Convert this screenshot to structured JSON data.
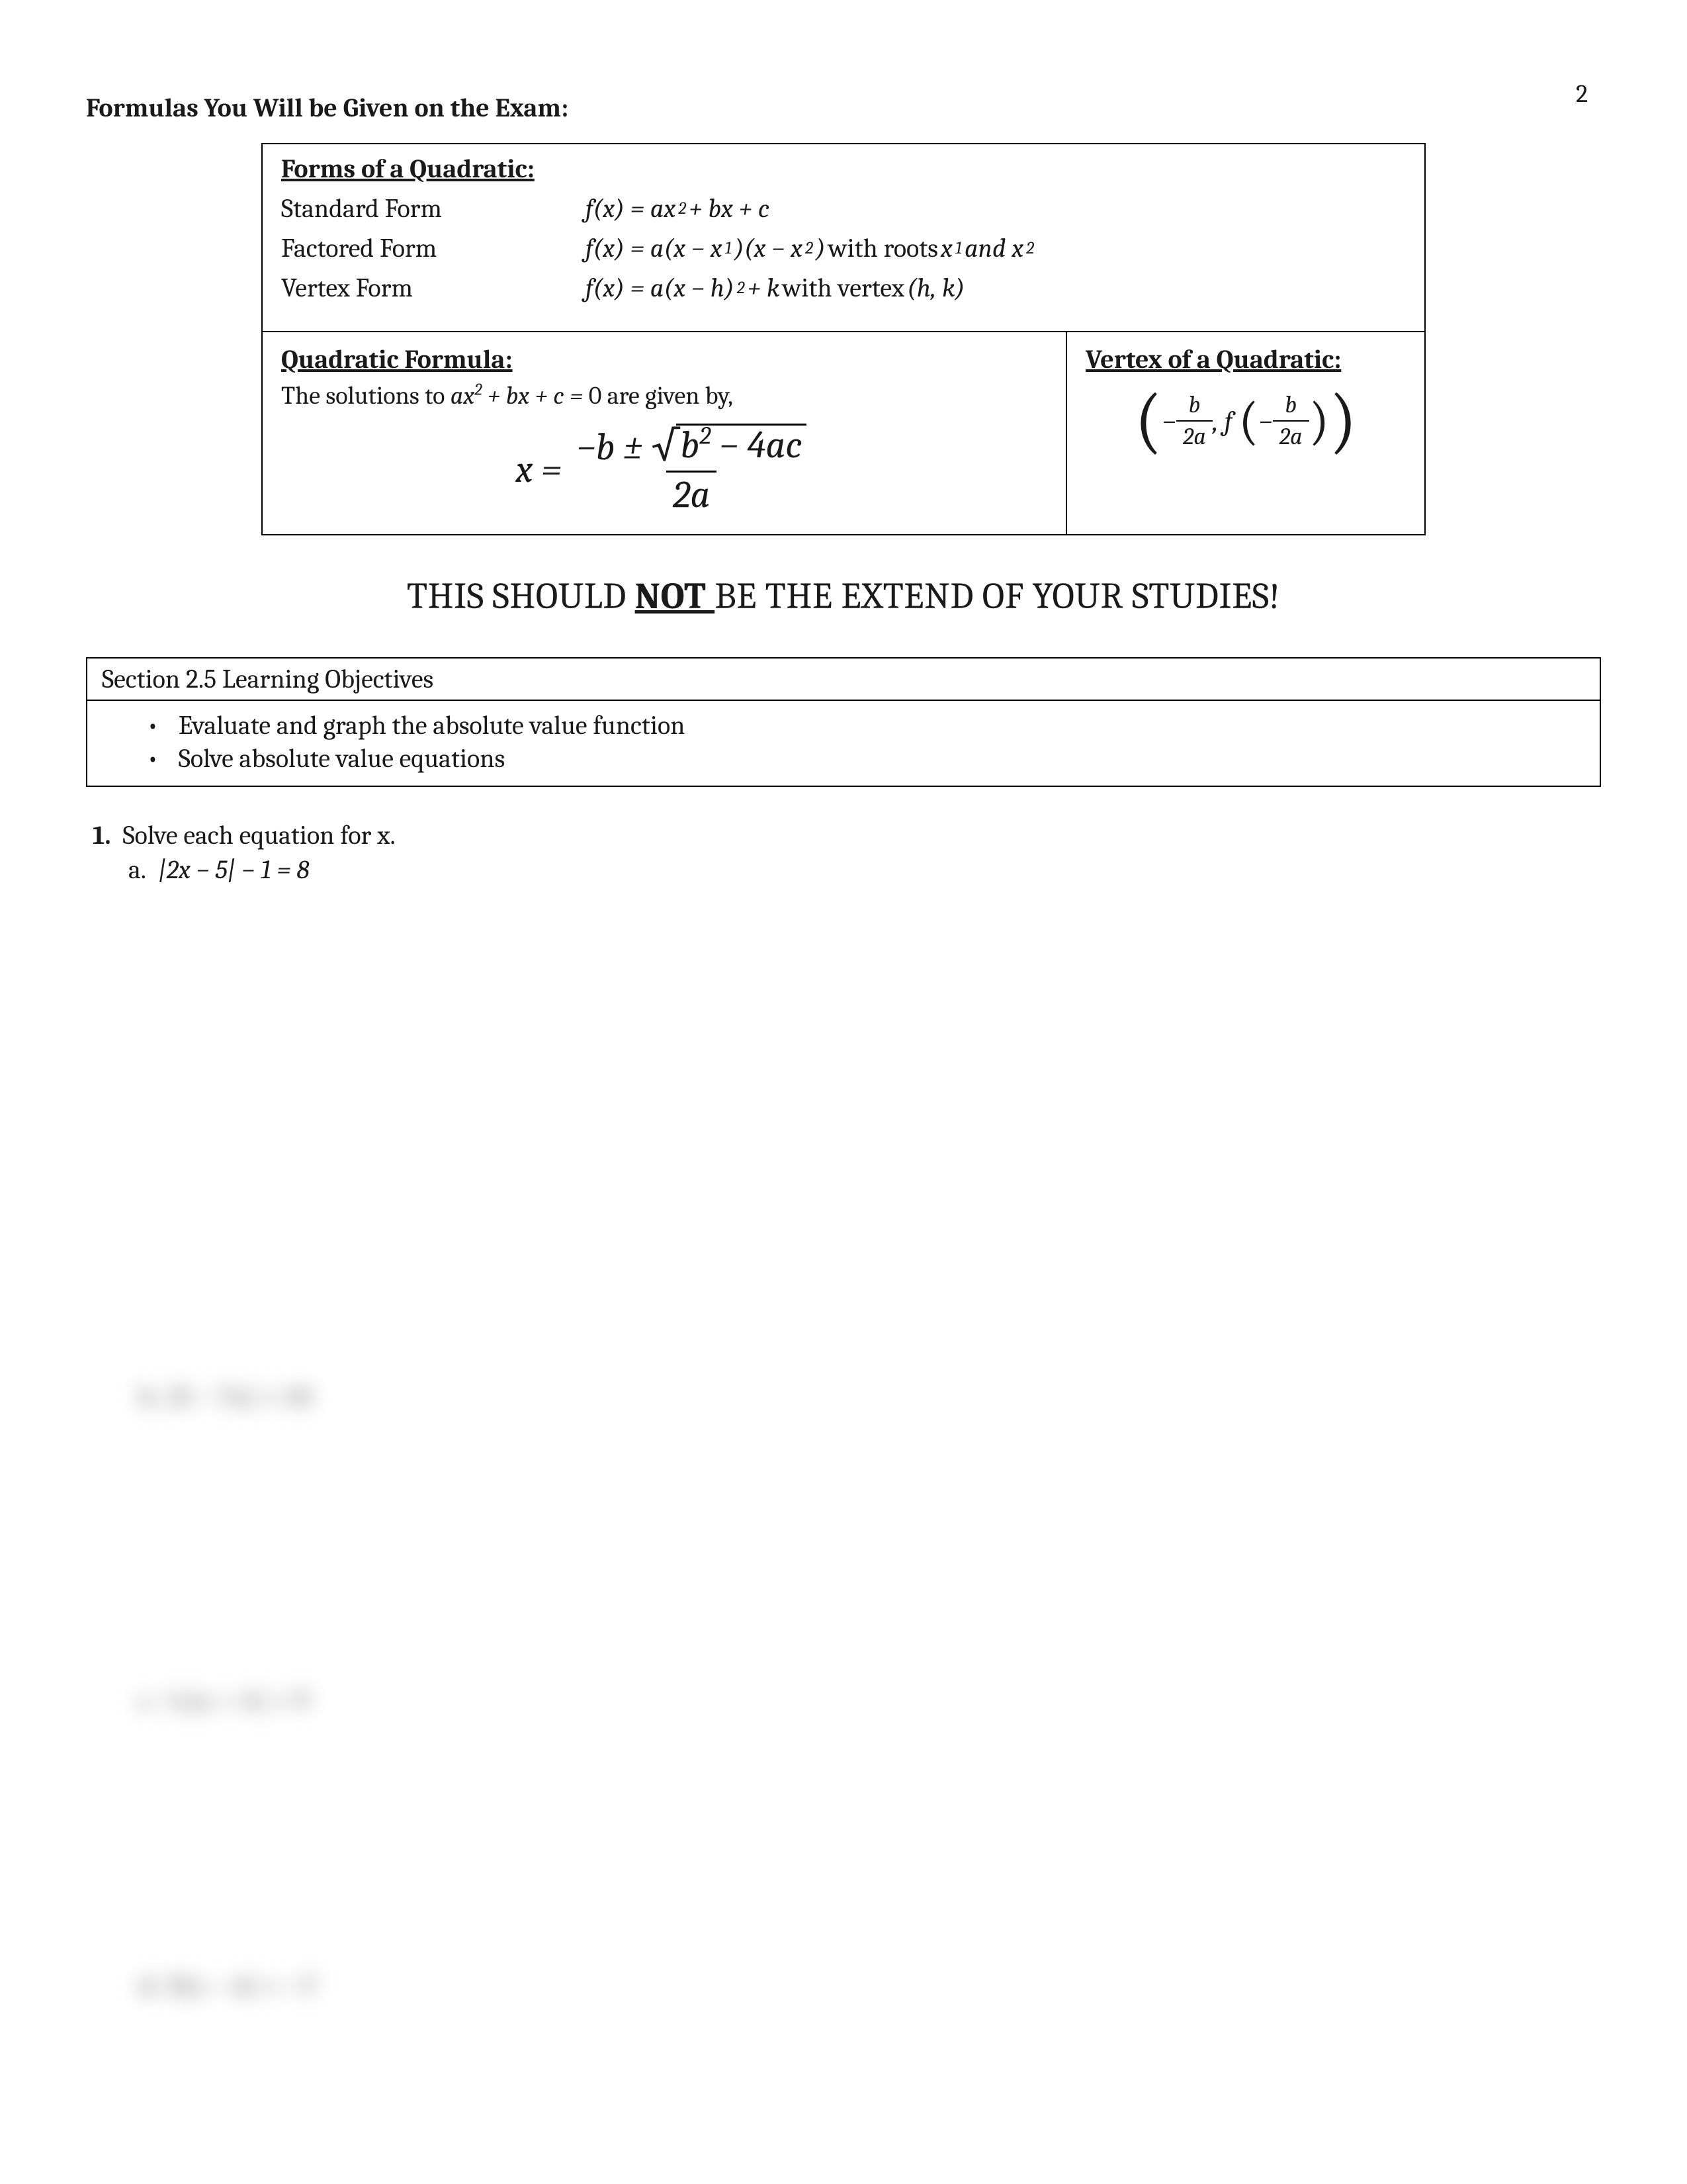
{
  "page_number": "2",
  "title": "Formulas You Will be Given on the Exam:",
  "forms": {
    "heading": "Forms of a Quadratic:",
    "rows": [
      {
        "label": "Standard Form",
        "expr_html": "f(x) = ax<sup>2</sup> + bx + c"
      },
      {
        "label": "Factored Form",
        "expr_html": "f(x) = a(x − x<sub>1</sub>)(x − x<sub>2</sub>) <span class='upright'>with roots</span> x<sub>1</sub> and x<sub>2</sub>"
      },
      {
        "label": "Vertex Form",
        "expr_html": "f(x) = a(x − h)<sup>2</sup> + k <span class='upright'>with vertex</span> (h, k)"
      }
    ]
  },
  "quadratic_formula": {
    "heading": "Quadratic Formula:",
    "intro_html": "The solutions to <span class='math-inline'>ax<sup>2</sup> + bx + c = <span class='up'>0</span></span> are given by,"
  },
  "vertex": {
    "heading": "Vertex of a Quadratic:"
  },
  "banner": {
    "pre": "THIS SHOULD ",
    "not": "NOT ",
    "post": "BE THE EXTEND OF YOUR STUDIES!"
  },
  "objectives": {
    "header": "Section 2.5 Learning Objectives",
    "items": [
      "Evaluate and graph the absolute value function",
      "Solve absolute value equations"
    ]
  },
  "problem1": {
    "number": "1.",
    "text": "Solve each equation for x.",
    "sub_letter": "a.",
    "sub_expr_html": "|2x − 5| − 1 = 8"
  },
  "blurred": [
    "b.  |3 − 7x| = 10",
    "c.  ½|x + 4| = 9",
    "d.  3|x − 6| = −7"
  ],
  "blur_positions": [
    2080,
    2540,
    2970
  ]
}
